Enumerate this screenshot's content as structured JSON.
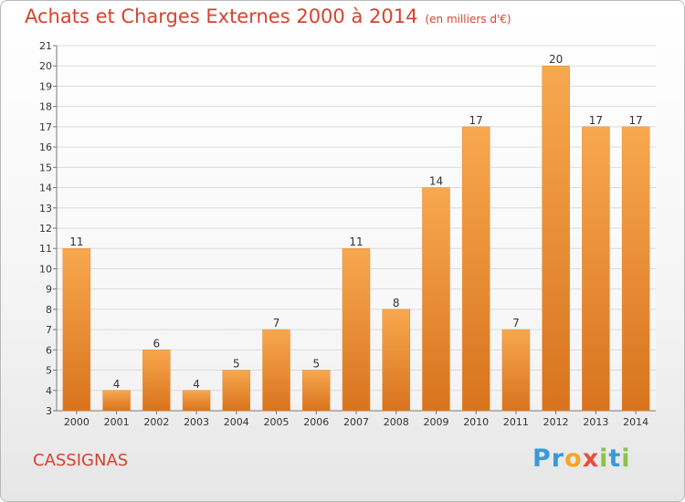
{
  "title": "Achats et Charges Externes 2000 à 2014",
  "subtitle": "(en milliers d'€)",
  "commune": "CASSIGNAS",
  "logo": {
    "letters": [
      {
        "ch": "P",
        "color": "#3a9ad9"
      },
      {
        "ch": "r",
        "color": "#3a9ad9"
      },
      {
        "ch": "o",
        "color": "#f5a623"
      },
      {
        "ch": "x",
        "color": "#e94e3c"
      },
      {
        "ch": "i",
        "color": "#8bc34a"
      },
      {
        "ch": "t",
        "color": "#3a9ad9"
      },
      {
        "ch": "i",
        "color": "#8bc34a"
      }
    ]
  },
  "colors": {
    "bar_light": "#f8a84f",
    "bar_dark": "#d8731d",
    "title": "#d7422f"
  },
  "chart_data": {
    "type": "bar",
    "title": "Achats et Charges Externes 2000 à 2014",
    "subtitle": "(en milliers d'€)",
    "categories": [
      "2000",
      "2001",
      "2002",
      "2003",
      "2004",
      "2005",
      "2006",
      "2007",
      "2008",
      "2009",
      "2010",
      "2011",
      "2012",
      "2013",
      "2014"
    ],
    "values": [
      11,
      4,
      6,
      4,
      5,
      7,
      5,
      11,
      8,
      14,
      17,
      7,
      20,
      17,
      17
    ],
    "ylim": [
      3,
      21
    ],
    "yticks": [
      3,
      4,
      5,
      6,
      7,
      8,
      9,
      10,
      11,
      12,
      13,
      14,
      15,
      16,
      17,
      18,
      19,
      20,
      21
    ],
    "grid": true,
    "legend": "none"
  }
}
